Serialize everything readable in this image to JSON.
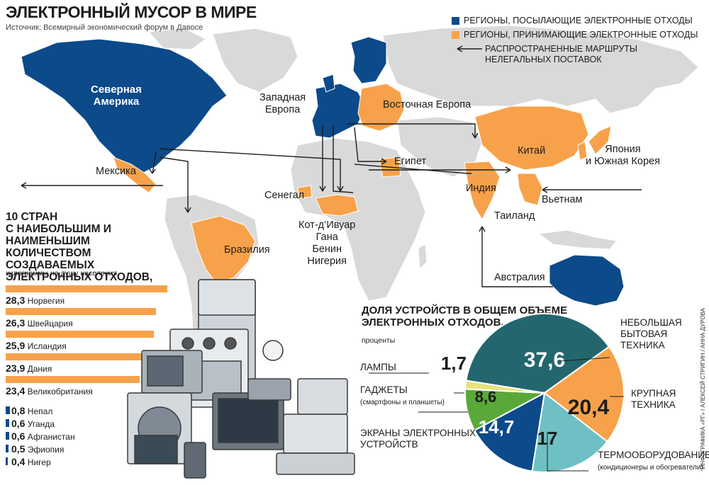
{
  "title": "ЭЛЕКТРОННЫЙ МУСОР В МИРЕ",
  "source": "Источник: Всемирный экономический форум в Давосе",
  "legend": {
    "senders": "РЕГИОНЫ, ПОСЫЛАЮЩИЕ ЭЛЕКТРОННЫЕ ОТХОДЫ",
    "receivers": "РЕГИОНЫ, ПРИНИМАЮЩИЕ ЭЛЕКТРОННЫЕ ОТХОДЫ",
    "routes_line1": "РАСПРОСТРАНЕННЫЕ МАРШРУТЫ",
    "routes_line2": "НЕЛЕГАЛЬНЫХ ПОСТАВОК"
  },
  "colors": {
    "senders": "#0c4a8a",
    "receivers": "#f7a24a",
    "land": "#d9d9d9",
    "ocean": "#ffffff"
  },
  "map_labels": {
    "north_america_1": "Северная",
    "north_america_2": "Америка",
    "western_europe_1": "Западная",
    "western_europe_2": "Европа",
    "eastern_europe": "Восточная Европа",
    "mexico": "Мексика",
    "egypt": "Египет",
    "china": "Китай",
    "japan_1": "Япония",
    "japan_2": "и Южная Корея",
    "senegal": "Сенегал",
    "india": "Индия",
    "vietnam": "Вьетнам",
    "thailand": "Таиланд",
    "west_africa_1": "Кот-д’Ивуар",
    "west_africa_2": "Гана",
    "west_africa_3": "Бенин",
    "west_africa_4": "Нигерия",
    "brazil": "Бразилия",
    "australia": "Австралия"
  },
  "chart_data": [
    {
      "type": "bar",
      "title": "10 СТРАН С НАИБОЛЬШИМ И НАИМЕНЬШИМ КОЛИЧЕСТВОМ СОЗДАВАЕМЫХ ЭЛЕКТРОННЫХ ОТХОДОВ,",
      "title_lines": [
        "10 СТРАН",
        "С НАИБОЛЬШИМ И НАИМЕНЬШИМ",
        "КОЛИЧЕСТВОМ СОЗДАВАЕМЫХ",
        "ЭЛЕКТРОННЫХ ОТХОДОВ,"
      ],
      "ylabel": "килограммы на душу населения",
      "categories": [
        "Норвегия",
        "Швейцария",
        "Исландия",
        "Дания",
        "Великобритания",
        "Непал",
        "Уганда",
        "Афганистан",
        "Эфиопия",
        "Нигер"
      ],
      "value_labels": [
        "28,3",
        "26,3",
        "25,9",
        "23,9",
        "23,4",
        "0,8",
        "0,6",
        "0,6",
        "0,5",
        "0,4"
      ],
      "values": [
        28.3,
        26.3,
        25.9,
        23.9,
        23.4,
        0.8,
        0.6,
        0.6,
        0.5,
        0.4
      ],
      "colors": [
        "#f7a24a",
        "#f7a24a",
        "#f7a24a",
        "#f7a24a",
        "#f7a24a",
        "#0c4a8a",
        "#0c4a8a",
        "#0c4a8a",
        "#0c4a8a",
        "#0c4a8a"
      ]
    },
    {
      "type": "pie",
      "title": "ДОЛЯ УСТРОЙСТВ В ОБЩЕМ ОБЪЕМЕ ЭЛЕКТРОННЫХ ОТХОДОВ,",
      "title_lines": [
        "ДОЛЯ УСТРОЙСТВ В ОБЩЕМ ОБЪЕМЕ",
        "ЭЛЕКТРОННЫХ ОТХОДОВ,"
      ],
      "unit": "проценты",
      "slices": [
        {
          "name": "НЕБОЛЬШАЯ БЫТОВАЯ ТЕХНИКА",
          "name_lines": [
            "НЕБОЛЬШАЯ",
            "БЫТОВАЯ",
            "ТЕХНИКА"
          ],
          "value": 37.6,
          "label": "37,6",
          "color": "#23666e"
        },
        {
          "name": "КРУПНАЯ ТЕХНИКА",
          "name_lines": [
            "КРУПНАЯ",
            "ТЕХНИКА"
          ],
          "value": 20.4,
          "label": "20,4",
          "color": "#f7a24a"
        },
        {
          "name": "ТЕРМООБОРУДОВАНИЕ",
          "name_lines": [
            "ТЕРМООБОРУДОВАНИЕ"
          ],
          "note": "(кондиционеры и обогреватели)",
          "value": 17,
          "label": "17",
          "color": "#6fc0c4"
        },
        {
          "name": "ЭКРАНЫ ЭЛЕКТРОННЫХ УСТРОЙСТВ",
          "name_lines": [
            "ЭКРАНЫ ЭЛЕКТРОННЫХ",
            "УСТРОЙСТВ"
          ],
          "value": 14.7,
          "label": "14,7",
          "color": "#0c4a8a"
        },
        {
          "name": "ГАДЖЕТЫ",
          "name_lines": [
            "ГАДЖЕТЫ"
          ],
          "note": "(смартфоны и планшеты)",
          "value": 8.6,
          "label": "8,6",
          "color": "#5aa838"
        },
        {
          "name": "ЛАМПЫ",
          "name_lines": [
            "ЛАМПЫ"
          ],
          "value": 1.7,
          "label": "1,7",
          "color": "#e8e27a"
        }
      ]
    }
  ],
  "credit": "ИНФОГРАФИКА «РГ» / АЛЕКСЕЙ СТРИГИН / АННА ДУРОВА"
}
